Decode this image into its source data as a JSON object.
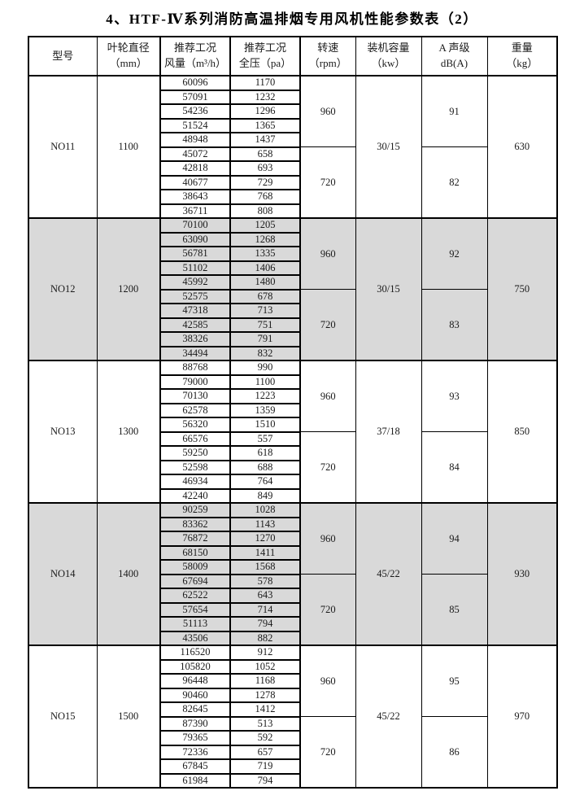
{
  "page": {
    "title": "4、HTF-Ⅳ系列消防高温排烟专用风机性能参数表（2）"
  },
  "table": {
    "headers": [
      {
        "line1": "型号",
        "line2": ""
      },
      {
        "line1": "叶轮直径",
        "line2": "（mm）"
      },
      {
        "line1": "推荐工况",
        "line2": "风量（m³/h）"
      },
      {
        "line1": "推荐工况",
        "line2": "全压（pa）"
      },
      {
        "line1": "转速",
        "line2": "（rpm）"
      },
      {
        "line1": "装机容量",
        "line2": "（kw）"
      },
      {
        "line1": "A 声级",
        "line2": "dB(A)"
      },
      {
        "line1": "重量",
        "line2": "（kg）"
      }
    ],
    "sections": [
      {
        "model": "NO11",
        "diameter_mm": "1100",
        "capacity_kw": "30/15",
        "weight_kg": "630",
        "shaded": false,
        "groups": [
          {
            "rpm": "960",
            "noise_db": "91",
            "rows": [
              [
                "60096",
                "1170"
              ],
              [
                "57091",
                "1232"
              ],
              [
                "54236",
                "1296"
              ],
              [
                "51524",
                "1365"
              ],
              [
                "48948",
                "1437"
              ]
            ]
          },
          {
            "rpm": "720",
            "noise_db": "82",
            "rows": [
              [
                "45072",
                "658"
              ],
              [
                "42818",
                "693"
              ],
              [
                "40677",
                "729"
              ],
              [
                "38643",
                "768"
              ],
              [
                "36711",
                "808"
              ]
            ]
          }
        ]
      },
      {
        "model": "NO12",
        "diameter_mm": "1200",
        "capacity_kw": "30/15",
        "weight_kg": "750",
        "shaded": true,
        "groups": [
          {
            "rpm": "960",
            "noise_db": "92",
            "rows": [
              [
                "70100",
                "1205"
              ],
              [
                "63090",
                "1268"
              ],
              [
                "56781",
                "1335"
              ],
              [
                "51102",
                "1406"
              ],
              [
                "45992",
                "1480"
              ]
            ]
          },
          {
            "rpm": "720",
            "noise_db": "83",
            "rows": [
              [
                "52575",
                "678"
              ],
              [
                "47318",
                "713"
              ],
              [
                "42585",
                "751"
              ],
              [
                "38326",
                "791"
              ],
              [
                "34494",
                "832"
              ]
            ]
          }
        ]
      },
      {
        "model": "NO13",
        "diameter_mm": "1300",
        "capacity_kw": "37/18",
        "weight_kg": "850",
        "shaded": false,
        "groups": [
          {
            "rpm": "960",
            "noise_db": "93",
            "rows": [
              [
                "88768",
                "990"
              ],
              [
                "79000",
                "1100"
              ],
              [
                "70130",
                "1223"
              ],
              [
                "62578",
                "1359"
              ],
              [
                "56320",
                "1510"
              ]
            ]
          },
          {
            "rpm": "720",
            "noise_db": "84",
            "rows": [
              [
                "66576",
                "557"
              ],
              [
                "59250",
                "618"
              ],
              [
                "52598",
                "688"
              ],
              [
                "46934",
                "764"
              ],
              [
                "42240",
                "849"
              ]
            ]
          }
        ]
      },
      {
        "model": "NO14",
        "diameter_mm": "1400",
        "capacity_kw": "45/22",
        "weight_kg": "930",
        "shaded": true,
        "groups": [
          {
            "rpm": "960",
            "noise_db": "94",
            "rows": [
              [
                "90259",
                "1028"
              ],
              [
                "83362",
                "1143"
              ],
              [
                "76872",
                "1270"
              ],
              [
                "68150",
                "1411"
              ],
              [
                "58009",
                "1568"
              ]
            ]
          },
          {
            "rpm": "720",
            "noise_db": "85",
            "rows": [
              [
                "67694",
                "578"
              ],
              [
                "62522",
                "643"
              ],
              [
                "57654",
                "714"
              ],
              [
                "51113",
                "794"
              ],
              [
                "43506",
                "882"
              ]
            ]
          }
        ]
      },
      {
        "model": "NO15",
        "diameter_mm": "1500",
        "capacity_kw": "45/22",
        "weight_kg": "970",
        "shaded": false,
        "groups": [
          {
            "rpm": "960",
            "noise_db": "95",
            "rows": [
              [
                "116520",
                "912"
              ],
              [
                "105820",
                "1052"
              ],
              [
                "96448",
                "1168"
              ],
              [
                "90460",
                "1278"
              ],
              [
                "82645",
                "1412"
              ]
            ]
          },
          {
            "rpm": "720",
            "noise_db": "86",
            "rows": [
              [
                "87390",
                "513"
              ],
              [
                "79365",
                "592"
              ],
              [
                "72336",
                "657"
              ],
              [
                "67845",
                "719"
              ],
              [
                "61984",
                "794"
              ]
            ]
          }
        ]
      }
    ]
  }
}
